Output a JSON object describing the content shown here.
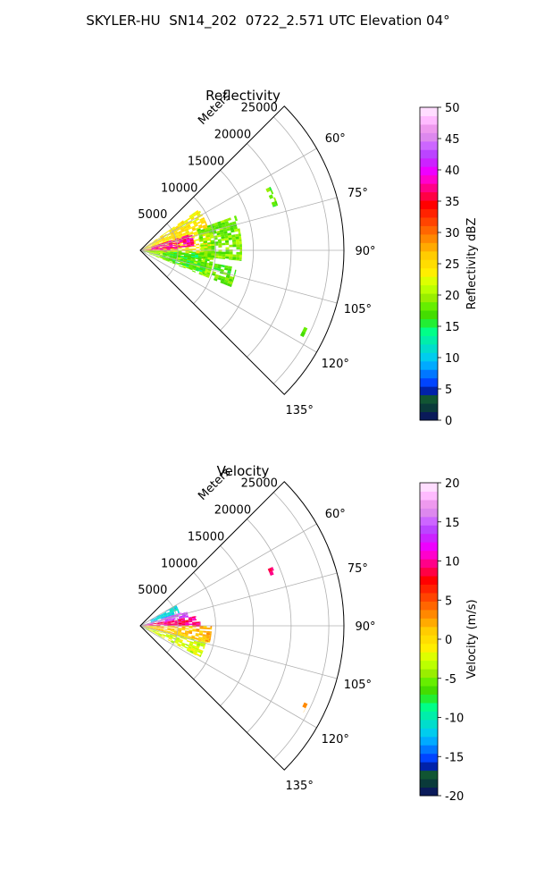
{
  "figure": {
    "title": "SKYLER-HU  SN14_202  0722_2.571 UTC Elevation 04°"
  },
  "chart_data": [
    {
      "type": "heatmap",
      "projection": "polar-sector",
      "title": "Reflectivity",
      "range_axis_label": "Meters",
      "range_ticks": [
        5000,
        10000,
        15000,
        20000,
        25000
      ],
      "range_max": 27000,
      "azimuth_range_deg": [
        45,
        135
      ],
      "azimuth_ticks": [
        60,
        75,
        90,
        105,
        120,
        135
      ],
      "azimuth_tick_labels": [
        "60°",
        "75°",
        "90°",
        "105°",
        "120°",
        "135°"
      ],
      "grid": true,
      "colorbar": {
        "label": "Reflectivity dBZ",
        "min": 0,
        "max": 50,
        "ticks": [
          0,
          5,
          10,
          15,
          20,
          25,
          30,
          35,
          40,
          45,
          50
        ],
        "colors": [
          "#0a1a5a",
          "#0a3a3a",
          "#115533",
          "#0022aa",
          "#0044ff",
          "#0077ff",
          "#00aaff",
          "#00ccee",
          "#00ddcc",
          "#00eeaa",
          "#00ff88",
          "#22ee33",
          "#44dd00",
          "#66ee00",
          "#99ee00",
          "#bbff00",
          "#ddff00",
          "#ffee00",
          "#ffdd00",
          "#ffcc00",
          "#ffaa00",
          "#ff8800",
          "#ff6600",
          "#ff4400",
          "#ff2200",
          "#ff0000",
          "#ff0044",
          "#ff0088",
          "#ff00cc",
          "#ee00ff",
          "#cc22ff",
          "#bb44ff",
          "#cc66ff",
          "#dd88ee",
          "#ee99ee",
          "#ffbbff",
          "#ffddff"
        ]
      },
      "field": [
        {
          "az": [
            55,
            98
          ],
          "r": [
            300,
            9500
          ],
          "value": 24
        },
        {
          "az": [
            72,
            86
          ],
          "r": [
            1500,
            7200
          ],
          "value": 37
        },
        {
          "az": [
            85,
            93
          ],
          "r": [
            200,
            5000
          ],
          "value": 36
        },
        {
          "az": [
            90,
            112
          ],
          "r": [
            300,
            9800
          ],
          "value": 19
        },
        {
          "az": [
            93,
            110
          ],
          "r": [
            3000,
            9000
          ],
          "value": 16
        },
        {
          "az": [
            70,
            96
          ],
          "r": [
            8000,
            13500
          ],
          "value": 18
        },
        {
          "az": [
            64,
            72
          ],
          "r": [
            18500,
            19200
          ],
          "value": 17
        },
        {
          "az": [
            115,
            118
          ],
          "r": [
            24000,
            24500
          ],
          "value": 17
        },
        {
          "az": [
            100,
            112
          ],
          "r": [
            10000,
            13000
          ],
          "value": 17
        }
      ]
    },
    {
      "type": "heatmap",
      "projection": "polar-sector",
      "title": "Velocity",
      "range_axis_label": "Meters",
      "range_ticks": [
        5000,
        10000,
        15000,
        20000,
        25000
      ],
      "range_max": 27000,
      "azimuth_range_deg": [
        45,
        135
      ],
      "azimuth_ticks": [
        60,
        75,
        90,
        105,
        120,
        135
      ],
      "azimuth_tick_labels": [
        "60°",
        "75°",
        "90°",
        "105°",
        "120°",
        "135°"
      ],
      "grid": true,
      "colorbar": {
        "label": "Velocity (m/s)",
        "min": -20,
        "max": 20,
        "ticks": [
          -20,
          -15,
          -10,
          -5,
          0,
          5,
          10,
          15,
          20
        ],
        "colors": [
          "#0a1a5a",
          "#0a3a3a",
          "#115533",
          "#0022aa",
          "#0044ff",
          "#0077ff",
          "#00aaff",
          "#00ccee",
          "#00ddcc",
          "#00eeaa",
          "#00ff88",
          "#22ee33",
          "#44dd00",
          "#66ee00",
          "#99ee00",
          "#bbff00",
          "#ddff00",
          "#ffee00",
          "#ffdd00",
          "#ffcc00",
          "#ffaa00",
          "#ff8800",
          "#ff6600",
          "#ff4400",
          "#ff2200",
          "#ff0000",
          "#ff0044",
          "#ff0088",
          "#ff00cc",
          "#ee00ff",
          "#cc22ff",
          "#bb44ff",
          "#cc66ff",
          "#dd88ee",
          "#ee99ee",
          "#ffbbff",
          "#ffddff"
        ]
      },
      "field": [
        {
          "az": [
            60,
            72
          ],
          "r": [
            1500,
            5500
          ],
          "value": -12
        },
        {
          "az": [
            72,
            80
          ],
          "r": [
            500,
            6500
          ],
          "value": 14
        },
        {
          "az": [
            80,
            90
          ],
          "r": [
            300,
            7500
          ],
          "value": 9
        },
        {
          "az": [
            86,
            91
          ],
          "r": [
            5000,
            8000
          ],
          "value": 9
        },
        {
          "az": [
            90,
            104
          ],
          "r": [
            300,
            9500
          ],
          "value": 1
        },
        {
          "az": [
            104,
            118
          ],
          "r": [
            300,
            9000
          ],
          "value": -3
        },
        {
          "az": [
            66,
            70
          ],
          "r": [
            18500,
            19200
          ],
          "value": 8
        },
        {
          "az": [
            115,
            118
          ],
          "r": [
            24000,
            24500
          ],
          "value": 1
        }
      ]
    }
  ]
}
